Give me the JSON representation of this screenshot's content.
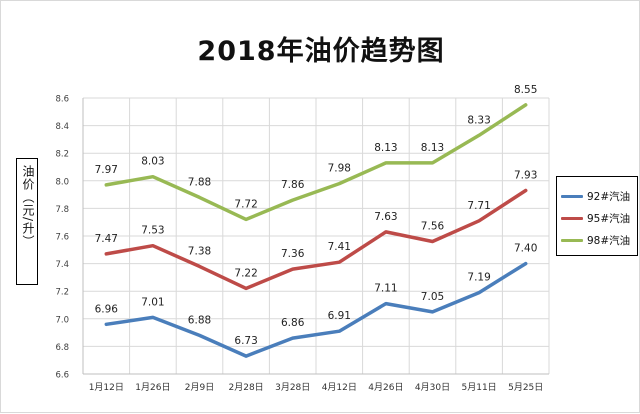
{
  "title": "2018年油价趋势图",
  "chart_data": {
    "type": "line",
    "title": "2018年油价趋势图",
    "xlabel": "",
    "ylabel": "油价（元/升）",
    "categories": [
      "1月12日",
      "1月26日",
      "2月9日",
      "2月28日",
      "3月28日",
      "4月12日",
      "4月26日",
      "4月30日",
      "5月11日",
      "5月25日"
    ],
    "ylim": [
      6.6,
      8.6
    ],
    "yticks": [
      "6.6",
      "6.8",
      "7.0",
      "7.2",
      "7.4",
      "7.6",
      "7.8",
      "8.0",
      "8.2",
      "8.4",
      "8.6"
    ],
    "grid": true,
    "legend_position": "right",
    "series": [
      {
        "name": "92#汽油",
        "color": "#4a7ebb",
        "values": [
          6.96,
          7.01,
          6.88,
          6.73,
          6.86,
          6.91,
          7.11,
          7.05,
          7.19,
          7.4
        ],
        "labels": [
          "6.96",
          "7.01",
          "6.88",
          "6.73",
          "6.86",
          "6.91",
          "7.11",
          "7.05",
          "7.19",
          "7.40"
        ]
      },
      {
        "name": "95#汽油",
        "color": "#be4b48",
        "values": [
          7.47,
          7.53,
          7.38,
          7.22,
          7.36,
          7.41,
          7.63,
          7.56,
          7.71,
          7.93
        ],
        "labels": [
          "7.47",
          "7.53",
          "7.38",
          "7.22",
          "7.36",
          "7.41",
          "7.63",
          "7.56",
          "7.71",
          "7.93"
        ]
      },
      {
        "name": "98#汽油",
        "color": "#98b954",
        "values": [
          7.97,
          8.03,
          7.88,
          7.72,
          7.86,
          7.98,
          8.13,
          8.13,
          8.33,
          8.55
        ],
        "labels": [
          "7.97",
          "8.03",
          "7.88",
          "7.72",
          "7.86",
          "7.98",
          "8.13",
          "8.13",
          "8.33",
          "8.55"
        ]
      }
    ]
  }
}
